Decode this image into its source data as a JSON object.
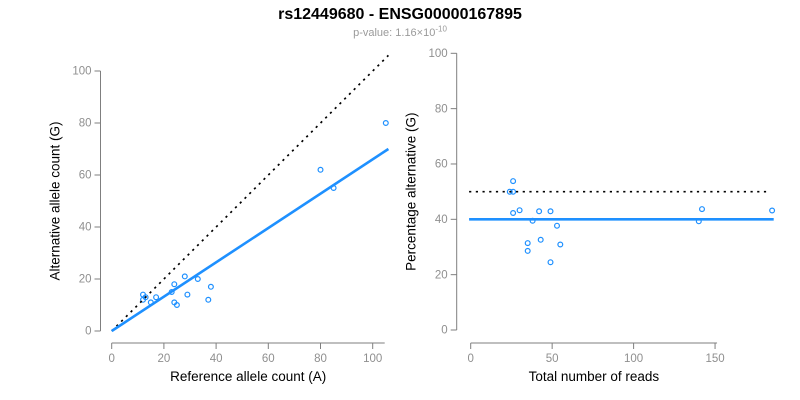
{
  "figure": {
    "title": "rs12449680 - ENSG00000167895",
    "subtitle_base": "p-value: 1.16×10",
    "subtitle_exponent": "-10"
  },
  "colors": {
    "accent": "#1E90FF",
    "axis": "#7f7f7f",
    "tick_label": "#8f8f8f",
    "axis_title": "#000000",
    "reference_line": "#000000",
    "subtitle": "#9a9a9a"
  },
  "chart_data": [
    {
      "name": "alt-count-vs-ref-count",
      "type": "scatter",
      "title": "rs12449680 - ENSG00000167895",
      "subtitle": "p-value: 1.16×10^-10",
      "xlabel": "Reference allele count (A)",
      "ylabel": "Alternative allele count (G)",
      "xlim": [
        0,
        106
      ],
      "ylim": [
        0,
        106
      ],
      "xticks": [
        0,
        20,
        40,
        60,
        80,
        100
      ],
      "yticks": [
        0,
        20,
        40,
        60,
        80,
        100
      ],
      "grid": false,
      "legend": "none",
      "points": [
        [
          12,
          14
        ],
        [
          12,
          12
        ],
        [
          13,
          13
        ],
        [
          15,
          11
        ],
        [
          17,
          13
        ],
        [
          23,
          15
        ],
        [
          24,
          18
        ],
        [
          28,
          21
        ],
        [
          29,
          14
        ],
        [
          24,
          11
        ],
        [
          25,
          10
        ],
        [
          33,
          20
        ],
        [
          37,
          12
        ],
        [
          38,
          17
        ],
        [
          80,
          62
        ],
        [
          85,
          55
        ],
        [
          105,
          80
        ]
      ],
      "lines": [
        {
          "name": "identity",
          "meaning": "y = x (expected 50/50)",
          "style": "dotted",
          "color": "#000000",
          "x1": 0,
          "y1": 0,
          "x2": 106,
          "y2": 106
        },
        {
          "name": "fit",
          "meaning": "fitted ratio y = 0.66x",
          "style": "solid",
          "color": "#1E90FF",
          "x1": 0,
          "y1": 0,
          "x2": 106,
          "y2": 70
        }
      ]
    },
    {
      "name": "percentage-vs-total-reads",
      "type": "scatter",
      "title": "rs12449680 - ENSG00000167895",
      "subtitle": "p-value: 1.16×10^-10",
      "xlabel": "Total number of reads",
      "ylabel": "Percentage alternative (G)",
      "xlim": [
        0,
        186
      ],
      "ylim": [
        0,
        100
      ],
      "xticks": [
        0,
        50,
        100,
        150
      ],
      "yticks": [
        0,
        20,
        40,
        60,
        80,
        100
      ],
      "grid": false,
      "legend": "none",
      "points": [
        [
          26,
          53.8
        ],
        [
          24,
          50
        ],
        [
          26,
          50
        ],
        [
          26,
          42.3
        ],
        [
          30,
          43.3
        ],
        [
          38,
          39.5
        ],
        [
          42,
          42.9
        ],
        [
          49,
          42.9
        ],
        [
          43,
          32.6
        ],
        [
          35,
          31.4
        ],
        [
          35,
          28.6
        ],
        [
          53,
          37.7
        ],
        [
          49,
          24.5
        ],
        [
          55,
          30.9
        ],
        [
          142,
          43.7
        ],
        [
          140,
          39.3
        ],
        [
          185,
          43.2
        ]
      ],
      "lines": [
        {
          "name": "expected-50pct",
          "meaning": "expected 50%",
          "style": "dotted",
          "color": "#000000",
          "x1": -1,
          "y1": 50,
          "x2": 183,
          "y2": 50
        },
        {
          "name": "mean-40pct",
          "meaning": "observed mean ≈ 40%",
          "style": "solid",
          "color": "#1E90FF",
          "x1": -1,
          "y1": 40,
          "x2": 186,
          "y2": 40
        }
      ]
    }
  ]
}
